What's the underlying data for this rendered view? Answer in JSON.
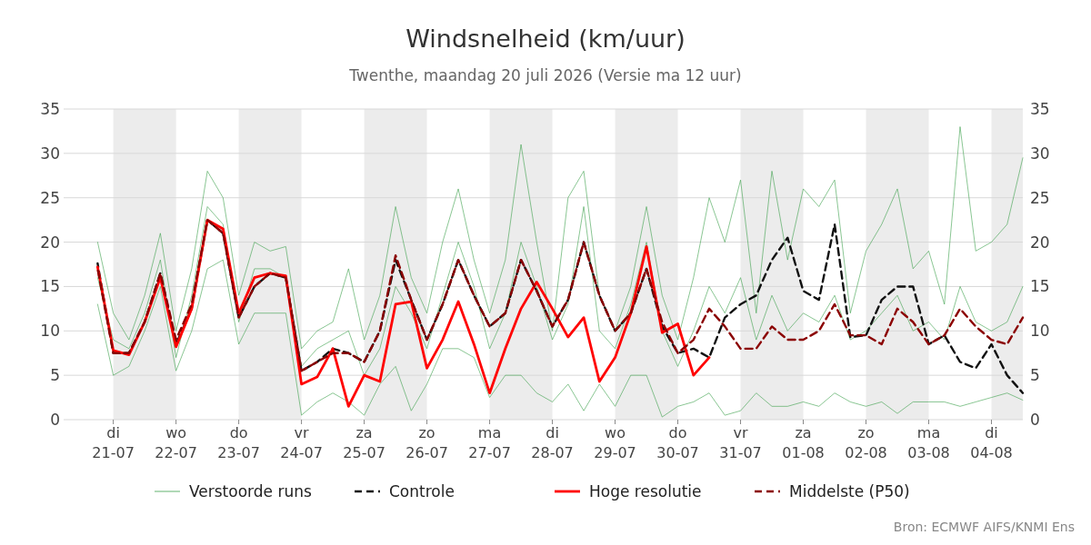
{
  "chart_data": {
    "type": "line",
    "title": "Windsnelheid (km/uur)",
    "subtitle": "Twenthe, maandag 20 juli 2026 (Versie ma 12 uur)",
    "annotations": [
      "Bron: ECMWF AIFS/KNMI Ens"
    ],
    "x": [
      "2026-07-20T18:00",
      "2026-07-21T00:00",
      "2026-07-21T06:00",
      "2026-07-21T12:00",
      "2026-07-21T18:00",
      "2026-07-22T00:00",
      "2026-07-22T06:00",
      "2026-07-22T12:00",
      "2026-07-22T18:00",
      "2026-07-23T00:00",
      "2026-07-23T06:00",
      "2026-07-23T12:00",
      "2026-07-23T18:00",
      "2026-07-24T00:00",
      "2026-07-24T06:00",
      "2026-07-24T12:00",
      "2026-07-24T18:00",
      "2026-07-25T00:00",
      "2026-07-25T06:00",
      "2026-07-25T12:00",
      "2026-07-25T18:00",
      "2026-07-26T00:00",
      "2026-07-26T06:00",
      "2026-07-26T12:00",
      "2026-07-26T18:00",
      "2026-07-27T00:00",
      "2026-07-27T06:00",
      "2026-07-27T12:00",
      "2026-07-27T18:00",
      "2026-07-28T00:00",
      "2026-07-28T06:00",
      "2026-07-28T12:00",
      "2026-07-28T18:00",
      "2026-07-29T00:00",
      "2026-07-29T06:00",
      "2026-07-29T12:00",
      "2026-07-29T18:00",
      "2026-07-30T00:00",
      "2026-07-30T06:00",
      "2026-07-30T12:00",
      "2026-07-30T18:00",
      "2026-07-31T00:00",
      "2026-07-31T06:00",
      "2026-07-31T12:00",
      "2026-07-31T18:00",
      "2026-08-01T00:00",
      "2026-08-01T06:00",
      "2026-08-01T12:00",
      "2026-08-01T18:00",
      "2026-08-02T00:00",
      "2026-08-02T06:00",
      "2026-08-02T12:00",
      "2026-08-02T18:00",
      "2026-08-03T00:00",
      "2026-08-03T06:00",
      "2026-08-03T12:00",
      "2026-08-03T18:00",
      "2026-08-04T00:00",
      "2026-08-04T06:00",
      "2026-08-04T12:00"
    ],
    "series": [
      {
        "name": "Verstoorde runs",
        "color": "#3aa04a",
        "values": [
          20,
          12,
          9,
          14,
          21,
          10,
          17,
          28,
          25,
          14,
          20,
          19,
          19.5,
          8,
          10,
          11,
          17,
          9,
          14,
          24,
          16,
          12,
          20,
          26,
          18,
          12,
          18,
          31,
          20,
          10,
          25,
          28,
          14,
          10,
          15,
          24,
          14,
          9,
          16,
          25,
          20,
          27,
          12,
          28,
          18,
          26,
          24,
          27,
          12,
          19,
          22,
          26,
          17,
          19,
          13,
          33,
          19,
          20,
          22,
          29.5
        ]
      },
      {
        "color": "#3aa04a",
        "values": [
          13,
          5,
          6,
          10,
          15,
          5.5,
          10,
          17,
          18,
          8.5,
          12,
          12,
          12,
          0.5,
          2,
          3,
          2,
          0.5,
          4,
          6,
          1,
          4,
          8,
          8,
          7,
          2.5,
          5,
          5,
          3,
          2,
          4,
          1,
          4,
          1.5,
          5,
          5,
          0.3,
          1.5,
          2,
          3,
          0.5,
          1,
          3,
          1.5,
          1.5,
          2,
          1.5,
          3,
          2,
          1.5,
          2,
          0.7,
          2,
          2,
          2,
          1.5,
          2,
          2.5,
          3,
          2.2
        ]
      },
      {
        "color": "#3aa04a",
        "values": [
          16,
          9,
          8,
          12,
          18,
          7,
          14,
          24,
          22,
          11,
          17,
          17,
          16,
          6,
          8,
          9,
          10,
          5,
          8,
          15,
          12,
          8,
          14,
          20,
          15,
          8,
          12,
          20,
          15,
          9,
          13,
          24,
          10,
          8,
          13,
          20,
          10,
          6,
          10,
          15,
          12,
          16,
          9,
          14,
          10,
          12,
          11,
          14,
          9,
          10,
          12,
          14,
          10,
          11,
          9,
          15,
          11,
          10,
          11,
          15
        ]
      },
      {
        "name": "Controle",
        "color": "#111111",
        "line_style": "dashed",
        "values": [
          17.6,
          7.5,
          7.5,
          11,
          16.5,
          8.5,
          12.5,
          22.5,
          21,
          11.5,
          15,
          16.5,
          16,
          5.5,
          6.5,
          8,
          7.5,
          6.5,
          10,
          18,
          13.5,
          9,
          13,
          18,
          14,
          10.5,
          12,
          18,
          14.5,
          10.5,
          13.5,
          20,
          14,
          10,
          12,
          17,
          10.5,
          7.5,
          8,
          7,
          11.5,
          13,
          14,
          18,
          20.5,
          14.5,
          13.5,
          22,
          9.3,
          9.5,
          13.5,
          15,
          15,
          8.5,
          9.5,
          6.5,
          5.8,
          8.5,
          5,
          3
        ]
      },
      {
        "name": "Hoge resolutie",
        "color": "#ff0000",
        "values": [
          17.2,
          7.8,
          7.3,
          11,
          16,
          8.2,
          12.5,
          22.5,
          21.5,
          12,
          16,
          16.5,
          16.2,
          4,
          4.8,
          8,
          1.5,
          5,
          4.3,
          13,
          13.3,
          5.8,
          9,
          13.3,
          8.5,
          3,
          8,
          12.5,
          15.5,
          12.5,
          9.3,
          11.5,
          4.3,
          7,
          12,
          19.5,
          9.8,
          10.8,
          5,
          7,
          null,
          null,
          null,
          null,
          null,
          null,
          null,
          null,
          null,
          null,
          null,
          null,
          null,
          null,
          null,
          null,
          null,
          null,
          null,
          null
        ]
      },
      {
        "name": "Middelste (P50)",
        "color": "#8b0000",
        "line_style": "dashed",
        "values": [
          17,
          7.5,
          7.5,
          11,
          16.5,
          9,
          13,
          22.5,
          21,
          11.5,
          15,
          16.5,
          16,
          5.5,
          6.5,
          7.5,
          7.5,
          6.5,
          10,
          18.5,
          13.5,
          9,
          13,
          18,
          14,
          10.5,
          12,
          18,
          14.5,
          10.5,
          13.5,
          20,
          14,
          10,
          12,
          17,
          11,
          7.5,
          9,
          12.5,
          10.5,
          8,
          8,
          10.5,
          9,
          9,
          10,
          13,
          9.5,
          9.5,
          8.5,
          12.5,
          11,
          8.5,
          9.5,
          12.5,
          10.5,
          9,
          8.5,
          11.5
        ]
      }
    ],
    "xlim": [
      "2026-07-20T05:00",
      "2026-08-04T12:00"
    ],
    "xticks": [
      {
        "value": "2026-07-21",
        "label": "di\n21-07"
      },
      {
        "value": "2026-07-22",
        "label": "wo\n22-07"
      },
      {
        "value": "2026-07-23",
        "label": "do\n23-07"
      },
      {
        "value": "2026-07-24",
        "label": "vr\n24-07"
      },
      {
        "value": "2026-07-25",
        "label": "za\n25-07"
      },
      {
        "value": "2026-07-26",
        "label": "zo\n26-07"
      },
      {
        "value": "2026-07-27",
        "label": "ma\n27-07"
      },
      {
        "value": "2026-07-28",
        "label": "di\n28-07"
      },
      {
        "value": "2026-07-29",
        "label": "wo\n29-07"
      },
      {
        "value": "2026-07-30",
        "label": "do\n30-07"
      },
      {
        "value": "2026-07-31",
        "label": "vr\n31-07"
      },
      {
        "value": "2026-08-01",
        "label": "za\n01-08"
      },
      {
        "value": "2026-08-02",
        "label": "zo\n02-08"
      },
      {
        "value": "2026-08-03",
        "label": "ma\n03-08"
      },
      {
        "value": "2026-08-04",
        "label": "di\n04-08"
      }
    ],
    "ylim": [
      0,
      35
    ],
    "yticks": [
      0,
      5,
      10,
      15,
      20,
      25,
      30,
      35
    ],
    "y2lim": [
      0,
      35
    ],
    "y2ticks": [
      0,
      5,
      10,
      15,
      20,
      25,
      30,
      35
    ],
    "bands": [
      {
        "axis": "x",
        "from": "2026-07-21",
        "to": "2026-07-22",
        "color": "#ececec"
      },
      {
        "axis": "x",
        "from": "2026-07-23",
        "to": "2026-07-24",
        "color": "#ececec"
      },
      {
        "axis": "x",
        "from": "2026-07-25",
        "to": "2026-07-26",
        "color": "#ececec"
      },
      {
        "axis": "x",
        "from": "2026-07-27",
        "to": "2026-07-28",
        "color": "#ececec"
      },
      {
        "axis": "x",
        "from": "2026-07-29",
        "to": "2026-07-30",
        "color": "#ececec"
      },
      {
        "axis": "x",
        "from": "2026-07-31",
        "to": "2026-08-01",
        "color": "#ececec"
      },
      {
        "axis": "x",
        "from": "2026-08-02",
        "to": "2026-08-03",
        "color": "#ececec"
      },
      {
        "axis": "x",
        "from": "2026-08-04",
        "to": "2026-08-04T12:00",
        "color": "#ececec"
      }
    ],
    "grid": "y",
    "legend": "bottom"
  }
}
